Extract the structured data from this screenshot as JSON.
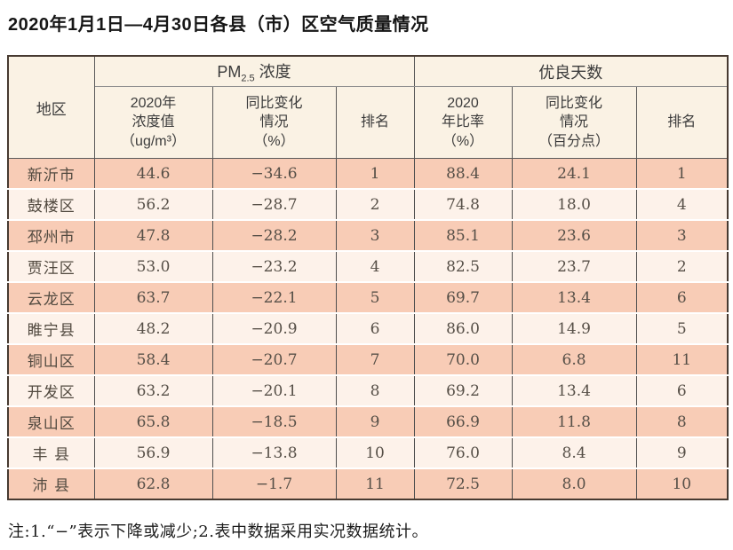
{
  "page": {
    "title": "2020年1月1日—4月30日各县（市）区空气质量情况",
    "footnote": "注:1.“−”表示下降或减少;2.表中数据采用实况数据统计。"
  },
  "colors": {
    "row_salmon": "#f8ccb6",
    "row_light": "#fdf2ea",
    "header_cream": "#faf2e4",
    "outer_border": "#473a31"
  },
  "table": {
    "region_header": "地区",
    "pm25_group": {
      "prefix": "PM",
      "sub": "2.5",
      "suffix": " 浓度"
    },
    "good_days_group": "优良天数",
    "sub_headers": [
      "2020年\n浓度值\n（ug/m³）",
      "同比变化\n情况\n（%）",
      "排名",
      "2020\n年比率\n（%）",
      "同比变化\n情况\n（百分点）",
      "排名"
    ],
    "rows": [
      {
        "region": "新沂市",
        "pm_value": "44.6",
        "pm_change": "−34.6",
        "pm_rank": "1",
        "good_rate": "88.4",
        "good_change": "24.1",
        "good_rank": "1"
      },
      {
        "region": "鼓楼区",
        "pm_value": "56.2",
        "pm_change": "−28.7",
        "pm_rank": "2",
        "good_rate": "74.8",
        "good_change": "18.0",
        "good_rank": "4"
      },
      {
        "region": "邳州市",
        "pm_value": "47.8",
        "pm_change": "−28.2",
        "pm_rank": "3",
        "good_rate": "85.1",
        "good_change": "23.6",
        "good_rank": "3"
      },
      {
        "region": "贾汪区",
        "pm_value": "53.0",
        "pm_change": "−23.2",
        "pm_rank": "4",
        "good_rate": "82.5",
        "good_change": "23.7",
        "good_rank": "2"
      },
      {
        "region": "云龙区",
        "pm_value": "63.7",
        "pm_change": "−22.1",
        "pm_rank": "5",
        "good_rate": "69.7",
        "good_change": "13.4",
        "good_rank": "6"
      },
      {
        "region": "睢宁县",
        "pm_value": "48.2",
        "pm_change": "−20.9",
        "pm_rank": "6",
        "good_rate": "86.0",
        "good_change": "14.9",
        "good_rank": "5"
      },
      {
        "region": "铜山区",
        "pm_value": "58.4",
        "pm_change": "−20.7",
        "pm_rank": "7",
        "good_rate": "70.0",
        "good_change": "6.8",
        "good_rank": "11"
      },
      {
        "region": "开发区",
        "pm_value": "63.2",
        "pm_change": "−20.1",
        "pm_rank": "8",
        "good_rate": "69.2",
        "good_change": "13.4",
        "good_rank": "6"
      },
      {
        "region": "泉山区",
        "pm_value": "65.8",
        "pm_change": "−18.5",
        "pm_rank": "9",
        "good_rate": "66.9",
        "good_change": "11.8",
        "good_rank": "8"
      },
      {
        "region": "丰 县",
        "pm_value": "56.9",
        "pm_change": "−13.8",
        "pm_rank": "10",
        "good_rate": "76.0",
        "good_change": "8.4",
        "good_rank": "9"
      },
      {
        "region": "沛 县",
        "pm_value": "62.8",
        "pm_change": "−1.7",
        "pm_rank": "11",
        "good_rate": "72.5",
        "good_change": "8.0",
        "good_rank": "10"
      }
    ]
  }
}
